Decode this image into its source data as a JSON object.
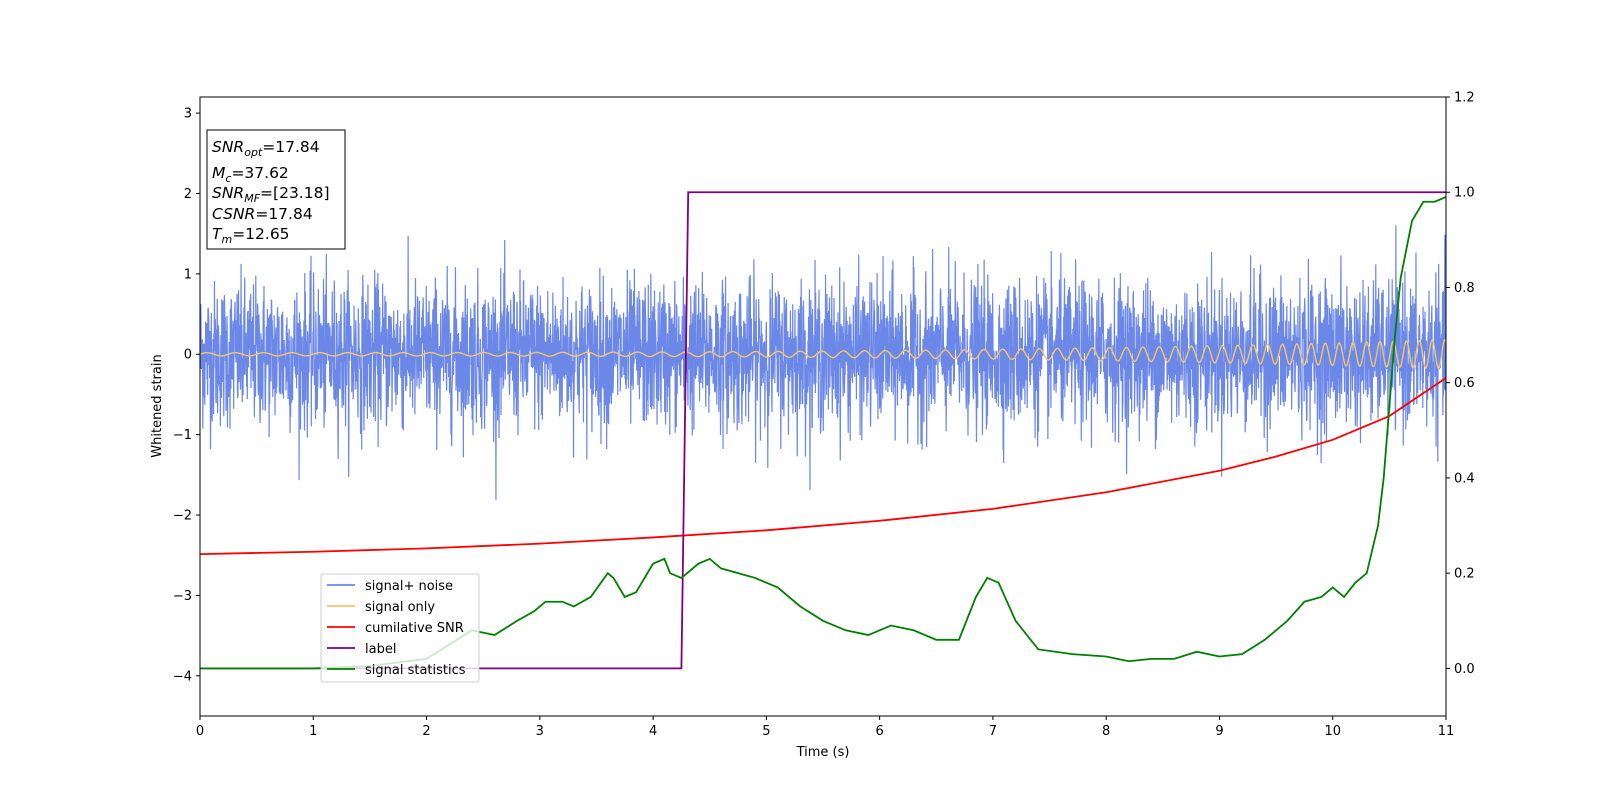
{
  "chart_data": {
    "type": "line",
    "xlabel": "Time (s)",
    "ylabel": "Whitened strain",
    "xlim": [
      0,
      11
    ],
    "ylim_left": [
      -4.5,
      3.2
    ],
    "ylim_right": [
      -0.1,
      1.2
    ],
    "x_ticks": [
      "0",
      "1",
      "2",
      "3",
      "4",
      "5",
      "6",
      "7",
      "8",
      "9",
      "10",
      "11"
    ],
    "y_left_ticks": [
      "3",
      "2",
      "1",
      "0",
      "−1",
      "−2",
      "−3",
      "−4"
    ],
    "y_right_ticks": [
      "1.2",
      "1.0",
      "0.8",
      "0.6",
      "0.4",
      "0.2",
      "0.0"
    ],
    "grid": false,
    "legend_position": "lower-left",
    "colors": {
      "signal_noise": "#6b87e8",
      "signal_only": "#f2c46e",
      "cumulative_snr": "#ff0000",
      "label": "#800080",
      "signal_statistics": "#008000"
    },
    "annotation": {
      "snr_opt_label": "SNR",
      "snr_opt_sub": "opt",
      "snr_opt_value": "=17.84",
      "mc_label": "M",
      "mc_sub": "c",
      "mc_value": "=37.62",
      "snr_mf_label": "SNR",
      "snr_mf_sub": "MF",
      "snr_mf_value": "=[23.18]",
      "csnr_label": "CSNR",
      "csnr_value": "=17.84",
      "tm_label": "T",
      "tm_sub": "m",
      "tm_value": "=12.65"
    },
    "series": [
      {
        "name": "signal+ noise",
        "axis": "left",
        "noise_std": 0.45,
        "description_points": "dense noise around 0, range about -2 to 1.9"
      },
      {
        "name": "signal only",
        "axis": "left",
        "chirp": {
          "amp_start": 0.02,
          "amp_end": 0.18,
          "freq_start": 4,
          "freq_end": 9
        }
      },
      {
        "name": "cumilative SNR",
        "axis": "right",
        "x": [
          0,
          1,
          2,
          3,
          4,
          5,
          6,
          7,
          8,
          9,
          9.5,
          10,
          10.5,
          11
        ],
        "y": [
          0.24,
          0.245,
          0.252,
          0.262,
          0.275,
          0.29,
          0.31,
          0.335,
          0.37,
          0.415,
          0.445,
          0.48,
          0.53,
          0.61
        ]
      },
      {
        "name": "label",
        "axis": "right",
        "x": [
          0,
          4.25,
          4.31,
          11
        ],
        "y": [
          0.0,
          0.0,
          1.0,
          1.0
        ]
      },
      {
        "name": "signal statistics",
        "axis": "right",
        "x": [
          0,
          0.5,
          1.0,
          1.5,
          2.0,
          2.2,
          2.4,
          2.6,
          2.8,
          2.95,
          3.05,
          3.2,
          3.3,
          3.45,
          3.6,
          3.65,
          3.75,
          3.85,
          4.0,
          4.1,
          4.15,
          4.25,
          4.3,
          4.4,
          4.5,
          4.6,
          4.75,
          4.9,
          5.1,
          5.3,
          5.5,
          5.7,
          5.9,
          6.1,
          6.3,
          6.5,
          6.7,
          6.85,
          6.95,
          7.05,
          7.2,
          7.4,
          7.7,
          8.0,
          8.2,
          8.4,
          8.6,
          8.8,
          9.0,
          9.2,
          9.4,
          9.6,
          9.75,
          9.9,
          10.0,
          10.1,
          10.2,
          10.3,
          10.4,
          10.45,
          10.5,
          10.55,
          10.6,
          10.7,
          10.8,
          10.9,
          11.0
        ],
        "y": [
          0.0,
          0.0,
          0.0,
          0.005,
          0.02,
          0.05,
          0.08,
          0.07,
          0.1,
          0.12,
          0.14,
          0.14,
          0.13,
          0.15,
          0.2,
          0.19,
          0.15,
          0.16,
          0.22,
          0.23,
          0.2,
          0.19,
          0.2,
          0.22,
          0.23,
          0.21,
          0.2,
          0.19,
          0.17,
          0.13,
          0.1,
          0.08,
          0.07,
          0.09,
          0.08,
          0.06,
          0.06,
          0.15,
          0.19,
          0.18,
          0.1,
          0.04,
          0.03,
          0.025,
          0.015,
          0.02,
          0.02,
          0.035,
          0.025,
          0.03,
          0.06,
          0.1,
          0.14,
          0.15,
          0.17,
          0.15,
          0.18,
          0.2,
          0.3,
          0.4,
          0.55,
          0.7,
          0.82,
          0.94,
          0.98,
          0.98,
          0.99
        ]
      }
    ]
  }
}
